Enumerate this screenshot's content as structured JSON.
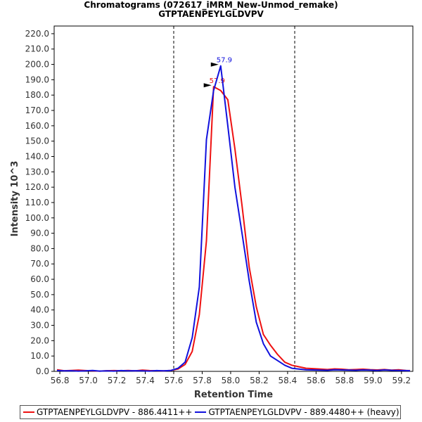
{
  "chart_data": {
    "type": "line",
    "title": "Chromatograms (072617_iMRM_New-Unmod_remake)",
    "subtitle": "GTPTAENPEYLGLDVPV",
    "xlabel": "Retention Time",
    "ylabel": "Intensity 10^3",
    "xlim": [
      56.76,
      59.28
    ],
    "ylim": [
      0,
      225
    ],
    "x_ticks": [
      "56.8",
      "57.0",
      "57.2",
      "57.4",
      "57.6",
      "57.8",
      "58.0",
      "58.2",
      "58.4",
      "58.6",
      "58.8",
      "59.0",
      "59.2"
    ],
    "y_ticks": [
      "0.0",
      "10.0",
      "20.0",
      "30.0",
      "40.0",
      "50.0",
      "60.0",
      "70.0",
      "80.0",
      "90.0",
      "100.0",
      "110.0",
      "120.0",
      "130.0",
      "140.0",
      "150.0",
      "160.0",
      "170.0",
      "180.0",
      "190.0",
      "200.0",
      "210.0",
      "220.0"
    ],
    "vlines": [
      57.6,
      58.45
    ],
    "series": [
      {
        "name": "GTPTAENPEYLGLDVPV - 886.4411++",
        "color": "#ee1111",
        "peak_label": "57.9",
        "peak": [
          57.88,
          185.5
        ],
        "x": [
          56.78,
          56.83,
          56.88,
          56.93,
          56.98,
          57.03,
          57.08,
          57.13,
          57.18,
          57.23,
          57.28,
          57.33,
          57.38,
          57.43,
          57.48,
          57.53,
          57.58,
          57.63,
          57.68,
          57.73,
          57.78,
          57.83,
          57.88,
          57.93,
          57.98,
          58.03,
          58.08,
          58.13,
          58.18,
          58.23,
          58.28,
          58.33,
          58.38,
          58.43,
          58.48,
          58.53,
          58.58,
          58.63,
          58.68,
          58.73,
          58.78,
          58.83,
          58.88,
          58.93,
          58.98,
          59.03,
          59.08,
          59.13,
          59.18,
          59.23,
          59.26
        ],
        "y": [
          1.0,
          0.4,
          0.6,
          0.8,
          0.5,
          0.3,
          0.2,
          0.4,
          0.5,
          0.4,
          0.6,
          0.3,
          0.8,
          0.5,
          0.4,
          0.3,
          0.6,
          1.5,
          4.5,
          13.0,
          37.0,
          85.0,
          185.5,
          183.0,
          177.0,
          145.0,
          108.0,
          68.0,
          42.0,
          24.0,
          17.0,
          11.0,
          6.0,
          4.0,
          3.0,
          2.0,
          1.8,
          1.5,
          1.2,
          1.6,
          1.4,
          1.0,
          1.2,
          1.4,
          1.1,
          0.9,
          1.2,
          0.8,
          1.0,
          0.6,
          0.5
        ]
      },
      {
        "name": "GTPTAENPEYLGLDVPV - 889.4480++ (heavy)",
        "color": "#1111dd",
        "peak_label": "57.9",
        "peak": [
          57.93,
          199.0
        ],
        "x": [
          56.78,
          56.83,
          56.88,
          56.93,
          56.98,
          57.03,
          57.08,
          57.13,
          57.18,
          57.23,
          57.28,
          57.33,
          57.38,
          57.43,
          57.48,
          57.53,
          57.58,
          57.63,
          57.68,
          57.73,
          57.78,
          57.83,
          57.88,
          57.93,
          57.98,
          58.03,
          58.08,
          58.13,
          58.18,
          58.23,
          58.28,
          58.33,
          58.38,
          58.43,
          58.48,
          58.53,
          58.58,
          58.63,
          58.68,
          58.73,
          58.78,
          58.83,
          58.88,
          58.93,
          58.98,
          59.03,
          59.08,
          59.13,
          59.18,
          59.23,
          59.26
        ],
        "y": [
          0.5,
          0.3,
          0.4,
          0.2,
          0.3,
          0.6,
          0.2,
          0.3,
          0.2,
          0.5,
          0.3,
          0.4,
          0.3,
          0.2,
          0.5,
          0.3,
          0.6,
          2.0,
          6.0,
          22.0,
          55.0,
          151.0,
          183.0,
          199.0,
          160.0,
          120.0,
          90.0,
          59.0,
          32.0,
          18.0,
          10.0,
          7.0,
          4.0,
          2.0,
          1.5,
          1.0,
          0.9,
          0.8,
          0.7,
          1.0,
          0.9,
          0.8,
          0.7,
          0.9,
          0.8,
          0.6,
          0.9,
          0.7,
          0.6,
          0.5,
          0.4
        ]
      }
    ]
  }
}
